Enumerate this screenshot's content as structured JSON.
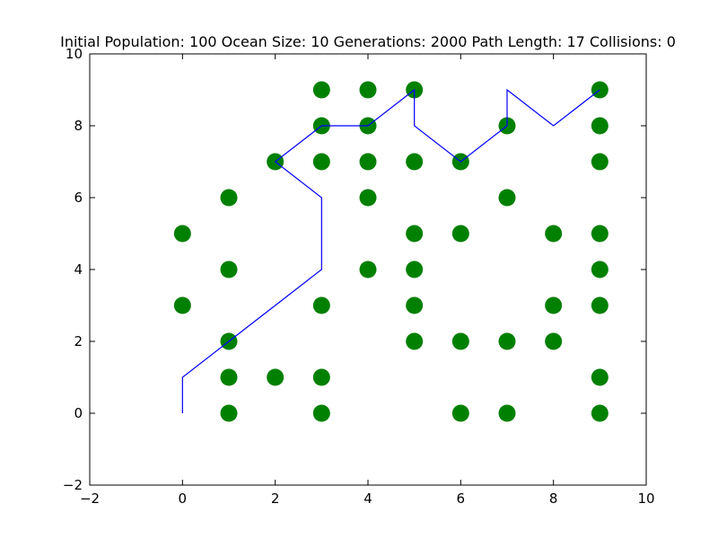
{
  "chart_data": {
    "type": "scatter",
    "title": "Initial Population: 100 Ocean Size: 10 Generations: 2000 Path Length: 17 Collisions: 0",
    "xlabel": "",
    "ylabel": "",
    "xlim": [
      -2,
      10
    ],
    "ylim": [
      -2,
      10
    ],
    "xticks": [
      -2,
      0,
      2,
      4,
      6,
      8,
      10
    ],
    "yticks": [
      -2,
      0,
      2,
      4,
      6,
      8,
      10
    ],
    "grid": false,
    "series": [
      {
        "kind": "scatter",
        "color": "#008000",
        "points": [
          [
            3,
            9
          ],
          [
            4,
            9
          ],
          [
            5,
            9
          ],
          [
            9,
            9
          ],
          [
            3,
            8
          ],
          [
            4,
            8
          ],
          [
            7,
            8
          ],
          [
            9,
            8
          ],
          [
            2,
            7
          ],
          [
            3,
            7
          ],
          [
            4,
            7
          ],
          [
            5,
            7
          ],
          [
            6,
            7
          ],
          [
            9,
            7
          ],
          [
            1,
            6
          ],
          [
            4,
            6
          ],
          [
            7,
            6
          ],
          [
            0,
            5
          ],
          [
            5,
            5
          ],
          [
            6,
            5
          ],
          [
            8,
            5
          ],
          [
            9,
            5
          ],
          [
            1,
            4
          ],
          [
            4,
            4
          ],
          [
            5,
            4
          ],
          [
            9,
            4
          ],
          [
            0,
            3
          ],
          [
            3,
            3
          ],
          [
            5,
            3
          ],
          [
            8,
            3
          ],
          [
            9,
            3
          ],
          [
            1,
            2
          ],
          [
            5,
            2
          ],
          [
            6,
            2
          ],
          [
            7,
            2
          ],
          [
            8,
            2
          ],
          [
            1,
            1
          ],
          [
            2,
            1
          ],
          [
            3,
            1
          ],
          [
            9,
            1
          ],
          [
            1,
            0
          ],
          [
            3,
            0
          ],
          [
            6,
            0
          ],
          [
            7,
            0
          ],
          [
            9,
            0
          ]
        ]
      },
      {
        "kind": "line",
        "color": "#0000ff",
        "points": [
          [
            0,
            0
          ],
          [
            0,
            1
          ],
          [
            1,
            2
          ],
          [
            2,
            3
          ],
          [
            3,
            4
          ],
          [
            3,
            5
          ],
          [
            3,
            6
          ],
          [
            2,
            7
          ],
          [
            3,
            8
          ],
          [
            4,
            8
          ],
          [
            5,
            9
          ],
          [
            5,
            8
          ],
          [
            6,
            7
          ],
          [
            7,
            8
          ],
          [
            7,
            9
          ],
          [
            8,
            8
          ],
          [
            9,
            9
          ]
        ]
      }
    ]
  }
}
